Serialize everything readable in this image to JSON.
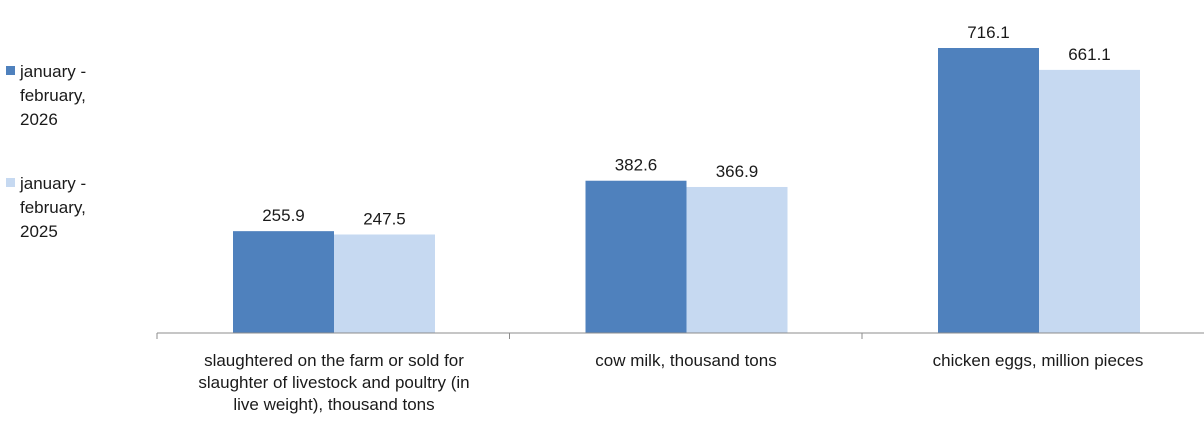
{
  "chart_data": {
    "type": "bar",
    "categories": [
      "slaughtered on the farm or sold for slaughter of livestock and poultry (in live weight), thousand tons",
      "cow milk, thousand tons",
      "chicken eggs, million pieces"
    ],
    "series": [
      {
        "name": "january - february, 2026",
        "values": [
          255.9,
          382.6,
          716.1
        ],
        "color": "#4f81bd"
      },
      {
        "name": "january - february, 2025",
        "values": [
          247.5,
          366.9,
          661.1
        ],
        "color": "#c6d9f1"
      }
    ],
    "ylim": [
      0,
      716.1
    ],
    "grid": false,
    "legend": "left",
    "value_labels": [
      "255.9",
      "382.6",
      "716.1",
      "247.5",
      "366.9",
      "661.1"
    ]
  }
}
